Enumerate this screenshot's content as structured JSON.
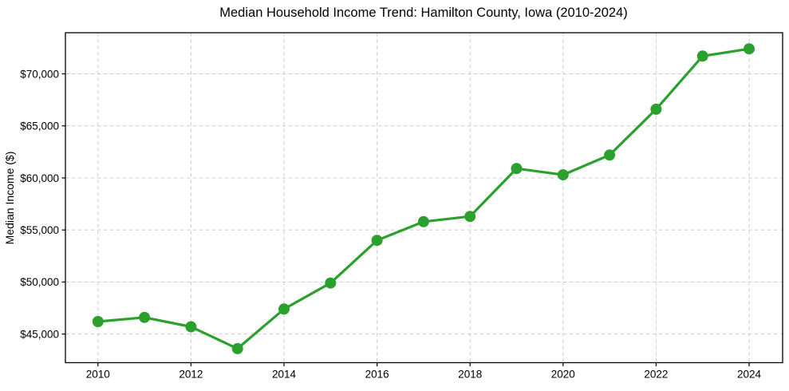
{
  "chart_data": {
    "type": "line",
    "title": "Median Household Income Trend: Hamilton County, Iowa (2010-2024)",
    "xlabel": "",
    "ylabel": "Median Income ($)",
    "series": [
      {
        "name": "Median household income",
        "x": [
          2010,
          2011,
          2012,
          2013,
          2014,
          2015,
          2016,
          2017,
          2018,
          2019,
          2020,
          2021,
          2022,
          2023,
          2024
        ],
        "values": [
          46200,
          46600,
          45700,
          43600,
          47400,
          49900,
          54000,
          55800,
          56300,
          60900,
          60300,
          62200,
          66600,
          71700,
          72400
        ],
        "color": "#2ca02c",
        "marker": "circle",
        "line_width": 3.2,
        "marker_diameter": 14
      }
    ],
    "x_ticks": [
      2010,
      2012,
      2014,
      2016,
      2018,
      2020,
      2022,
      2024
    ],
    "x_tick_labels": [
      "2010",
      "2012",
      "2014",
      "2016",
      "2018",
      "2020",
      "2022",
      "2024"
    ],
    "y_ticks": [
      45000,
      50000,
      55000,
      60000,
      65000,
      70000
    ],
    "y_tick_labels": [
      "$45,000",
      "$50,000",
      "$55,000",
      "$60,000",
      "$65,000",
      "$70,000"
    ],
    "xlim": [
      2009.3,
      2024.72
    ],
    "ylim": [
      42250,
      73950
    ],
    "grid": true,
    "grid_style": "dashed",
    "grid_color": "#cccccc",
    "spine_color": "#000000",
    "text_color": "#000000",
    "background_color": "#ffffff",
    "legend_position": "none"
  }
}
